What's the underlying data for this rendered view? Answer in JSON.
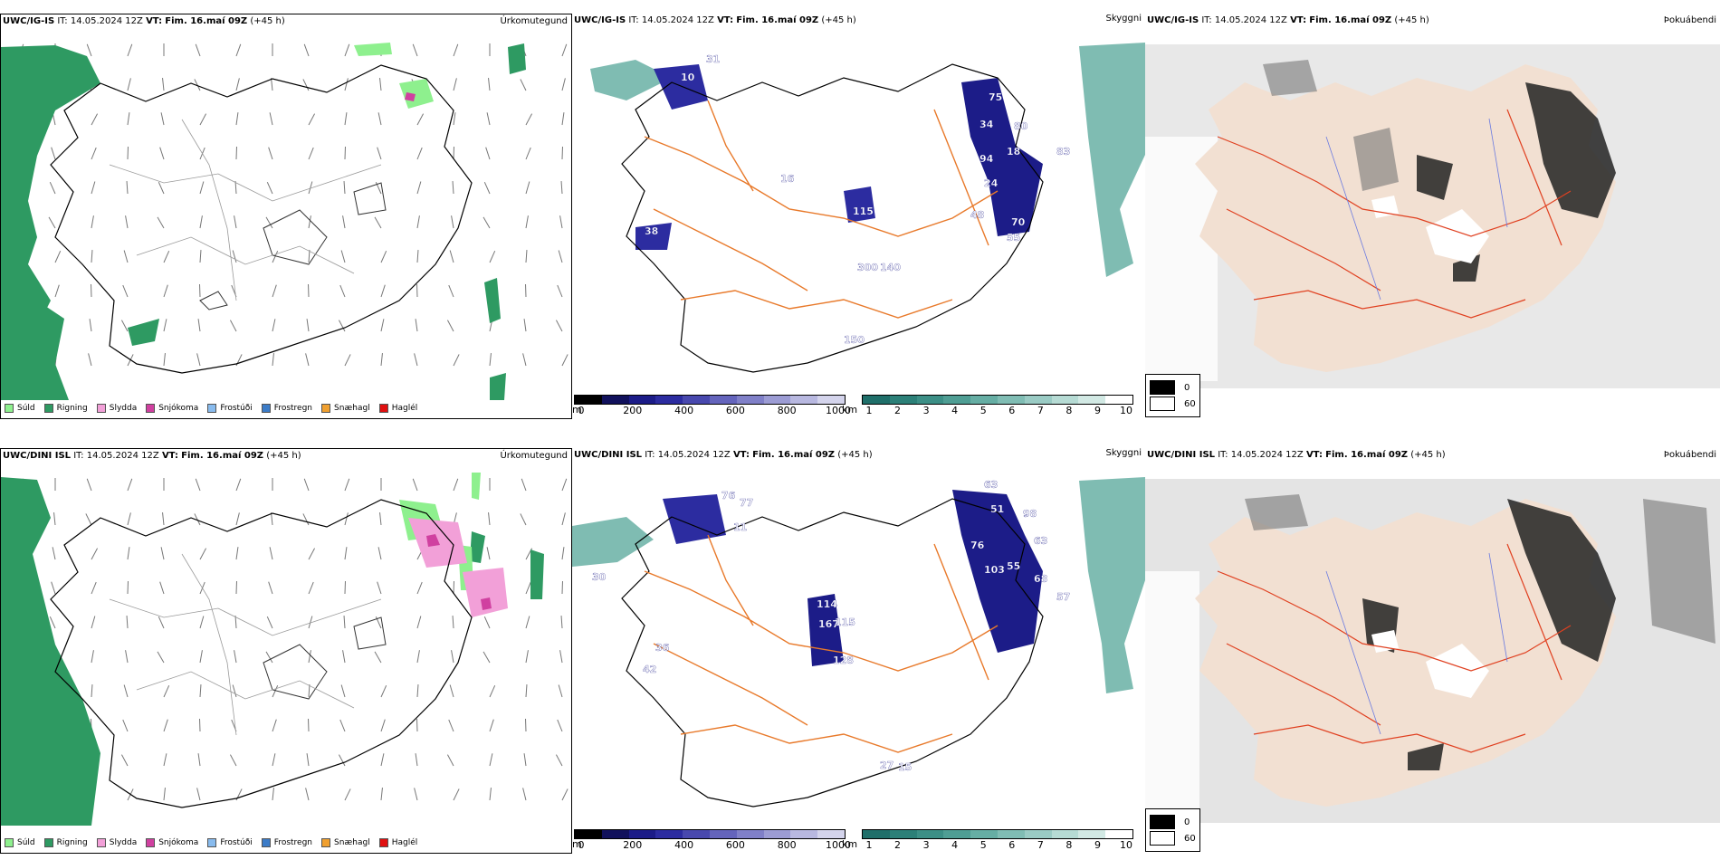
{
  "colors": {
    "rain": "#2e9a62",
    "drizzle": "#8ef08e",
    "sleet": "#f2a0d8",
    "snow": "#d040a0",
    "freezing_drizzle": "#88bbee",
    "freezing_rain": "#3c7cc8",
    "snow_pellets": "#f0a030",
    "hail": "#e01010",
    "roads": "#e8792a",
    "coast": "#000000",
    "land": "#f2e0d2"
  },
  "rows": [
    {
      "model": "UWC/IG-IS",
      "it_label": "IT:",
      "it_value": "14.05.2024 12Z",
      "vt_label": "VT:",
      "vt_value": "Fim. 16.maí 09Z",
      "lead": "(+45 h)",
      "precip_title": "Úrkomutegund",
      "cloud_title": "Skyggni",
      "fog_title": "Þokuábendi",
      "ceiling_labels": [
        "31",
        "10",
        "75",
        "34",
        "80",
        "94",
        "18",
        "16",
        "115",
        "300",
        "140",
        "70",
        "55",
        "38",
        "150",
        "83",
        "24",
        "48"
      ]
    },
    {
      "model": "UWC/DINI ISL",
      "it_label": "IT:",
      "it_value": "14.05.2024 12Z",
      "vt_label": "VT:",
      "vt_value": "Fim. 16.maí 09Z",
      "lead": "(+45 h)",
      "precip_title": "Úrkomutegund",
      "cloud_title": "Skyggni",
      "fog_title": "Þokuábendi",
      "ceiling_labels": [
        "76",
        "77",
        "11",
        "63",
        "51",
        "98",
        "76",
        "103",
        "55",
        "63",
        "68",
        "57",
        "114",
        "167",
        "115",
        "128",
        "42",
        "36",
        "27",
        "15",
        "30"
      ]
    }
  ],
  "precip_legend": [
    {
      "label": "Súld",
      "color": "#8ef08e"
    },
    {
      "label": "Rigning",
      "color": "#2e9a62"
    },
    {
      "label": "Slydda",
      "color": "#f2a0d8"
    },
    {
      "label": "Snjókoma",
      "color": "#d040a0"
    },
    {
      "label": "Frostúði",
      "color": "#88bbee"
    },
    {
      "label": "Frostregn",
      "color": "#3c7cc8"
    },
    {
      "label": "Snæhagl",
      "color": "#f0a030"
    },
    {
      "label": "Haglél",
      "color": "#e01010"
    }
  ],
  "ceiling_scale": {
    "unit": "m",
    "ticks": [
      "0",
      "200",
      "400",
      "600",
      "800",
      "1000"
    ],
    "colors": [
      "#000000",
      "#11115c",
      "#1c1c88",
      "#2c2ca0",
      "#4848ae",
      "#6464bc",
      "#8080c8",
      "#9c9cd4",
      "#b8b8e0",
      "#d4d4ec"
    ]
  },
  "visibility_scale": {
    "unit": "km",
    "ticks": [
      "1",
      "2",
      "3",
      "4",
      "5",
      "6",
      "7",
      "8",
      "9",
      "10"
    ],
    "colors": [
      "#1f6f6a",
      "#2c8078",
      "#3c8f86",
      "#4f9e94",
      "#66aea4",
      "#80bdb4",
      "#9acbc4",
      "#b6dbd4",
      "#d2e9e4",
      "#ffffff"
    ]
  },
  "fog_scale": {
    "entries": [
      {
        "value": "0",
        "color": "#000000"
      },
      {
        "value": "60",
        "color": "#ffffff"
      }
    ]
  }
}
